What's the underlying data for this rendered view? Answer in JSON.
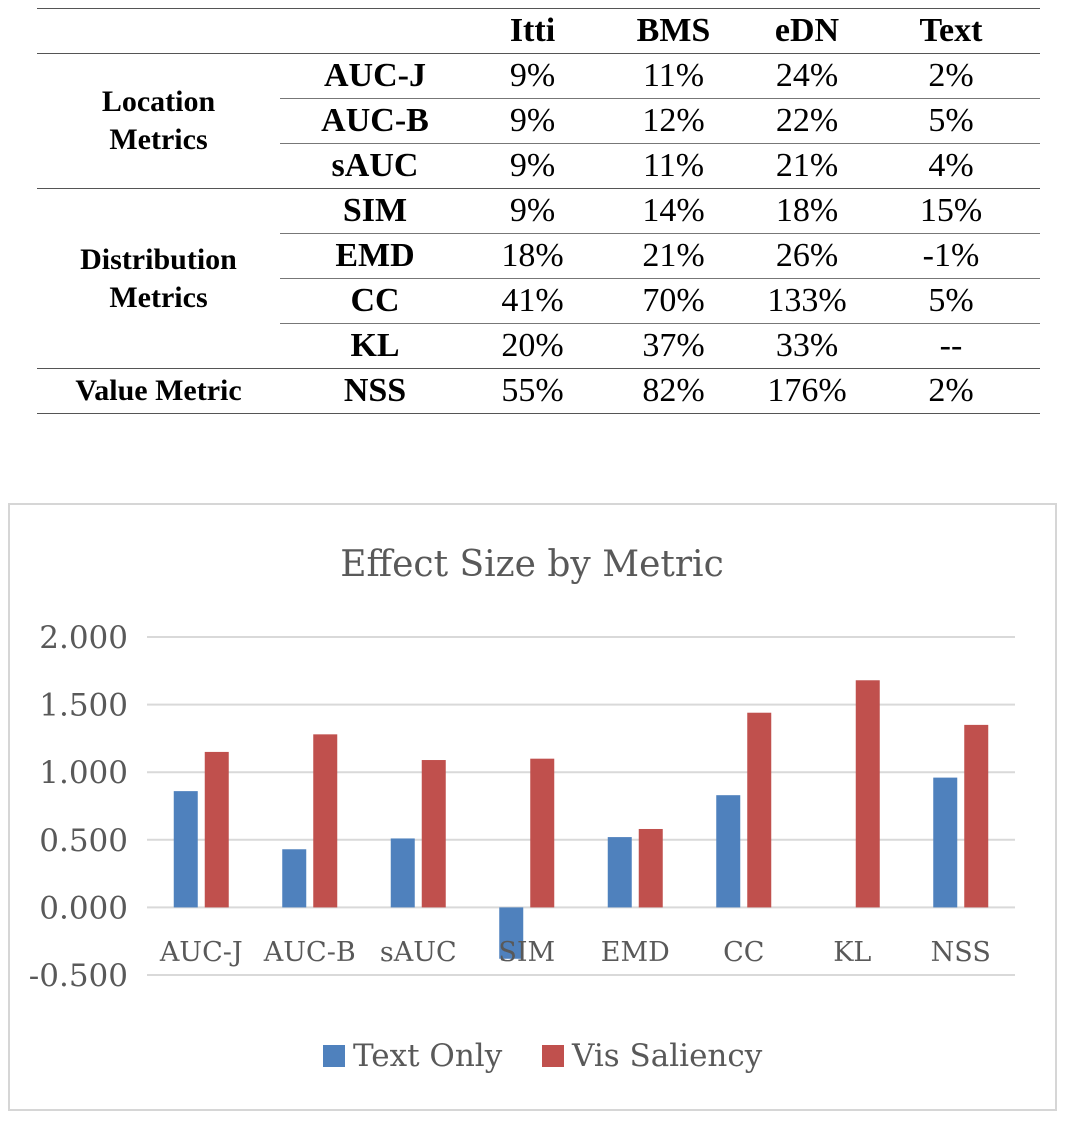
{
  "table": {
    "headers": [
      "",
      "",
      "Itti",
      "BMS",
      "eDN",
      "Text"
    ],
    "groups": [
      {
        "name_line1": "Location",
        "name_line2": "Metrics",
        "rows": [
          {
            "metric": "AUC-J",
            "itti": "9%",
            "bms": "11%",
            "edn": "24%",
            "text": "2%"
          },
          {
            "metric": "AUC-B",
            "itti": "9%",
            "bms": "12%",
            "edn": "22%",
            "text": "5%"
          },
          {
            "metric": "sAUC",
            "itti": "9%",
            "bms": "11%",
            "edn": "21%",
            "text": "4%"
          }
        ]
      },
      {
        "name_line1": "Distribution",
        "name_line2": "Metrics",
        "rows": [
          {
            "metric": "SIM",
            "itti": "9%",
            "bms": "14%",
            "edn": "18%",
            "text": "15%"
          },
          {
            "metric": "EMD",
            "itti": "18%",
            "bms": "21%",
            "edn": "26%",
            "text": "-1%"
          },
          {
            "metric": "CC",
            "itti": "41%",
            "bms": "70%",
            "edn": "133%",
            "text": "5%"
          },
          {
            "metric": "KL",
            "itti": "20%",
            "bms": "37%",
            "edn": "33%",
            "text": "--"
          }
        ]
      },
      {
        "name_line1": "Value Metric",
        "name_line2": "",
        "rows": [
          {
            "metric": "NSS",
            "itti": "55%",
            "bms": "82%",
            "edn": "176%",
            "text": "2%"
          }
        ]
      }
    ]
  },
  "chart_data": {
    "type": "bar",
    "title": "Effect Size by Metric",
    "xlabel": "",
    "ylabel": "",
    "categories": [
      "AUC-J",
      "AUC-B",
      "sAUC",
      "SIM",
      "EMD",
      "CC",
      "KL",
      "NSS"
    ],
    "series": [
      {
        "name": "Text Only",
        "color": "#4f81bd",
        "values": [
          0.86,
          0.43,
          0.51,
          -0.38,
          0.52,
          0.83,
          null,
          0.96
        ]
      },
      {
        "name": "Vis Saliency",
        "color": "#c0504d",
        "values": [
          1.15,
          1.28,
          1.09,
          1.1,
          0.58,
          1.44,
          1.68,
          1.35
        ]
      }
    ],
    "ylim": [
      -0.5,
      2.0
    ],
    "yticks": [
      "2.000",
      "1.500",
      "1.000",
      "0.500",
      "0.000",
      "-0.500"
    ],
    "ytick_values": [
      2.0,
      1.5,
      1.0,
      0.5,
      0.0,
      -0.5
    ],
    "grid": true,
    "legend_position": "bottom"
  }
}
